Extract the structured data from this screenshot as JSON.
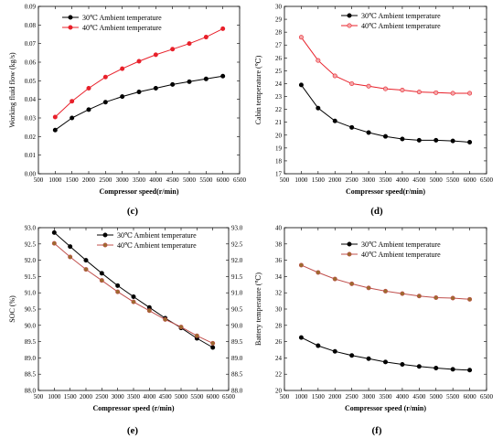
{
  "chart_data": [
    {
      "id": "c",
      "type": "line",
      "panel_label": "(c)",
      "xlabel": "Compressor speed(r/min)",
      "ylabel": "Working fluid flow (kg/s)",
      "xlim": [
        500,
        6500
      ],
      "ylim": [
        0.0,
        0.09
      ],
      "xticks": [
        500,
        1000,
        1500,
        2000,
        2500,
        3000,
        3500,
        4000,
        4500,
        5000,
        5500,
        6000,
        6500
      ],
      "yticks": [
        0.0,
        0.01,
        0.02,
        0.03,
        0.04,
        0.05,
        0.06,
        0.07,
        0.08,
        0.09
      ],
      "ytick_labels": [
        "0.00",
        "0.01",
        "0.02",
        "0.03",
        "0.04",
        "0.05",
        "0.06",
        "0.07",
        "0.08",
        "0.09"
      ],
      "legend_position": "top-left",
      "series": [
        {
          "name": "30℃ Ambient temperature",
          "color": "#000000",
          "marker_fill": "#000000",
          "x": [
            1000,
            1500,
            2000,
            2500,
            3000,
            3500,
            4000,
            4500,
            5000,
            5500,
            6000
          ],
          "values": [
            0.0235,
            0.03,
            0.0345,
            0.0385,
            0.0415,
            0.044,
            0.046,
            0.048,
            0.0495,
            0.051,
            0.0525
          ]
        },
        {
          "name": "40℃ Ambient temperature",
          "color": "#e8202a",
          "marker_fill": "#e8202a",
          "x": [
            1000,
            1500,
            2000,
            2500,
            3000,
            3500,
            4000,
            4500,
            5000,
            5500,
            6000
          ],
          "values": [
            0.0305,
            0.039,
            0.046,
            0.052,
            0.0565,
            0.0605,
            0.064,
            0.067,
            0.07,
            0.0735,
            0.078
          ]
        }
      ]
    },
    {
      "id": "d",
      "type": "line",
      "panel_label": "(d)",
      "xlabel": "Compressor speed(r/min)",
      "ylabel": "Cabin temperature (℃)",
      "xlim": [
        500,
        6500
      ],
      "ylim": [
        17,
        30
      ],
      "xticks": [
        500,
        1000,
        1500,
        2000,
        2500,
        3000,
        3500,
        4000,
        4500,
        5000,
        5500,
        6000,
        6500
      ],
      "yticks": [
        17,
        18,
        19,
        20,
        21,
        22,
        23,
        24,
        25,
        26,
        27,
        28,
        29,
        30
      ],
      "ytick_labels": [
        "17",
        "18",
        "19",
        "20",
        "21",
        "22",
        "23",
        "24",
        "25",
        "26",
        "27",
        "28",
        "29",
        "30"
      ],
      "legend_position": "top-right",
      "series": [
        {
          "name": "30℃ Ambient temperature",
          "color": "#000000",
          "marker_fill": "#000000",
          "x": [
            1000,
            1500,
            2000,
            2500,
            3000,
            3500,
            4000,
            4500,
            5000,
            5500,
            6000
          ],
          "values": [
            23.9,
            22.1,
            21.1,
            20.6,
            20.2,
            19.9,
            19.7,
            19.6,
            19.6,
            19.55,
            19.45
          ]
        },
        {
          "name": "40℃ Ambient temperature",
          "color": "#e8202a",
          "marker_fill": "#f4a6a8",
          "x": [
            1000,
            1500,
            2000,
            2500,
            3000,
            3500,
            4000,
            4500,
            5000,
            5500,
            6000
          ],
          "values": [
            27.6,
            25.8,
            24.6,
            24.0,
            23.8,
            23.6,
            23.5,
            23.35,
            23.3,
            23.25,
            23.25
          ]
        }
      ]
    },
    {
      "id": "e",
      "type": "line",
      "panel_label": "(e)",
      "xlabel": "Compressor speed (r/min)",
      "ylabel": "SOC (%)",
      "xlim": [
        500,
        6500
      ],
      "ylim": [
        88.0,
        93.0
      ],
      "xticks": [
        500,
        1000,
        1500,
        2000,
        2500,
        3000,
        3500,
        4000,
        4500,
        5000,
        5500,
        6000,
        6500
      ],
      "yticks": [
        88.0,
        88.5,
        89.0,
        89.5,
        90.0,
        90.5,
        91.0,
        91.5,
        92.0,
        92.5,
        93.0
      ],
      "ytick_labels": [
        "88.0",
        "88.5",
        "89.0",
        "89.5",
        "90.0",
        "90.5",
        "91.0",
        "91.5",
        "92.0",
        "92.5",
        "93.0"
      ],
      "right_ytick_labels": [
        "88.0",
        "88.5",
        "89.0",
        "89.5",
        "90.0",
        "90.5",
        "91.0",
        "91.5",
        "92.0",
        "92.5",
        "93.0"
      ],
      "legend_position": "top-right",
      "series": [
        {
          "name": "30℃ Ambient temperature",
          "color": "#000000",
          "marker_fill": "#000000",
          "x": [
            1000,
            1500,
            2000,
            2500,
            3000,
            3500,
            4000,
            4500,
            5000,
            5500,
            6000
          ],
          "values": [
            92.85,
            92.42,
            92.0,
            91.6,
            91.22,
            90.88,
            90.55,
            90.22,
            89.92,
            89.6,
            89.32
          ]
        },
        {
          "name": "40℃ Ambient temperature",
          "color": "#c0504d",
          "marker_fill": "#9c6b2e",
          "x": [
            1000,
            1500,
            2000,
            2500,
            3000,
            3500,
            4000,
            4500,
            5000,
            5500,
            6000
          ],
          "values": [
            92.52,
            92.1,
            91.72,
            91.38,
            91.03,
            90.72,
            90.45,
            90.18,
            89.95,
            89.68,
            89.45
          ]
        }
      ]
    },
    {
      "id": "f",
      "type": "line",
      "panel_label": "(f)",
      "xlabel": "Compressor speed (r/min)",
      "ylabel": "Battery temperature (℃)",
      "xlim": [
        500,
        6500
      ],
      "ylim": [
        20,
        40
      ],
      "xticks": [
        500,
        1000,
        1500,
        2000,
        2500,
        3000,
        3500,
        4000,
        4500,
        5000,
        5500,
        6000,
        6500
      ],
      "yticks": [
        20,
        22,
        24,
        26,
        28,
        30,
        32,
        34,
        36,
        38,
        40
      ],
      "ytick_labels": [
        "20",
        "22",
        "24",
        "26",
        "28",
        "30",
        "32",
        "34",
        "36",
        "38",
        "40"
      ],
      "legend_position": "top-right",
      "series": [
        {
          "name": "30℃ Ambient temperature",
          "color": "#000000",
          "marker_fill": "#000000",
          "x": [
            1000,
            1500,
            2000,
            2500,
            3000,
            3500,
            4000,
            4500,
            5000,
            5500,
            6000
          ],
          "values": [
            26.5,
            25.5,
            24.8,
            24.3,
            23.9,
            23.5,
            23.2,
            22.95,
            22.75,
            22.6,
            22.5
          ]
        },
        {
          "name": "40℃ Ambient temperature",
          "color": "#c0504d",
          "marker_fill": "#9c6b2e",
          "x": [
            1000,
            1500,
            2000,
            2500,
            3000,
            3500,
            4000,
            4500,
            5000,
            5500,
            6000
          ],
          "values": [
            35.4,
            34.5,
            33.7,
            33.1,
            32.6,
            32.2,
            31.9,
            31.6,
            31.4,
            31.35,
            31.2
          ]
        }
      ]
    }
  ]
}
